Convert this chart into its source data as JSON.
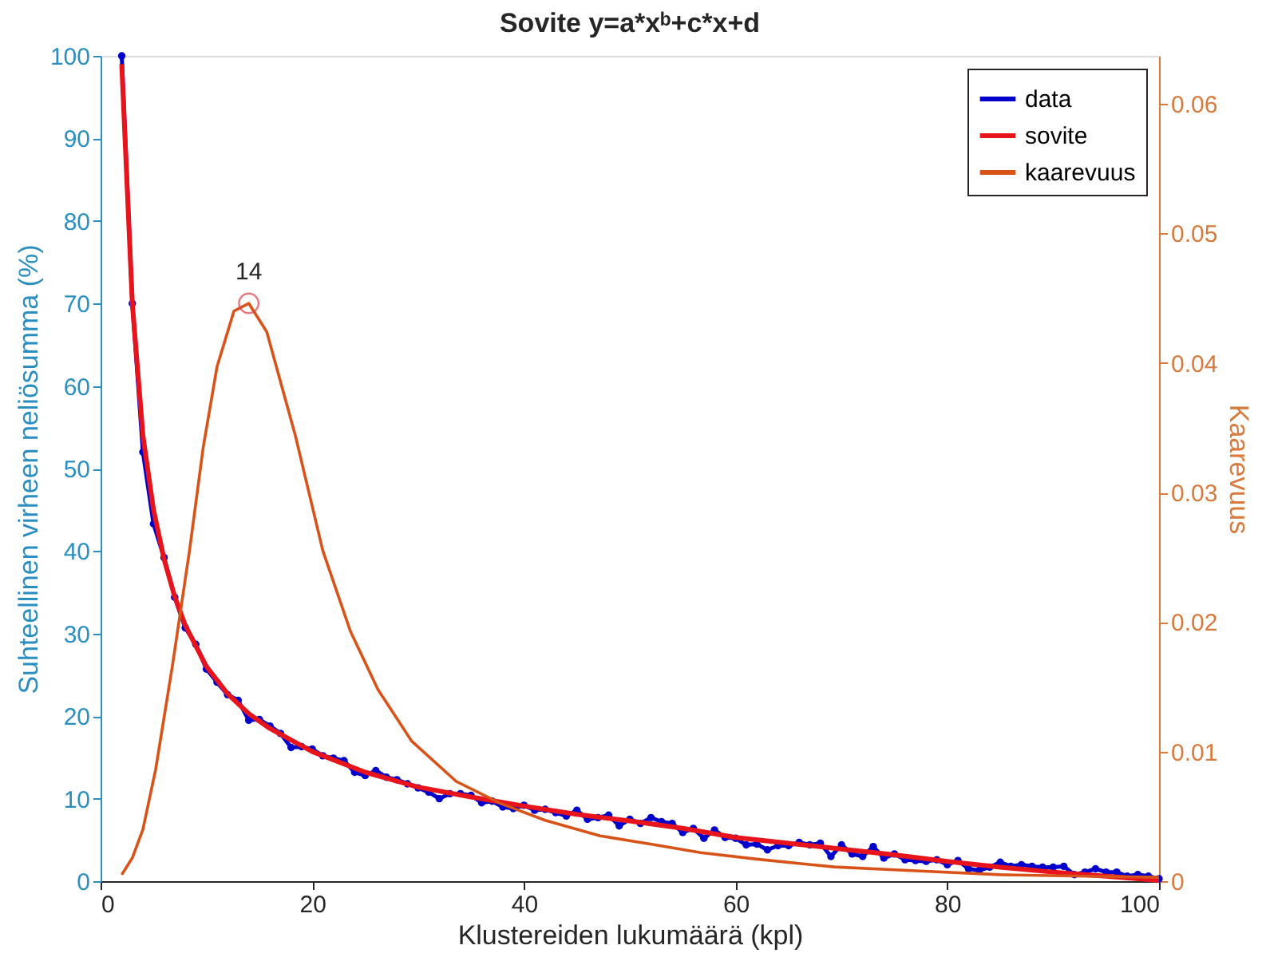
{
  "chart_data": {
    "type": "line",
    "title": "Sovite y=a*xᵇ+c*x+d",
    "xlabel": "Klustereiden lukumäärä (kpl)",
    "ylabel": "Suhteellinen virheen neliösumma (%)",
    "y2label": "Kaarevuus",
    "xlim": [
      0,
      100
    ],
    "xticks": [
      0,
      20,
      40,
      60,
      80,
      100
    ],
    "ylim": [
      0,
      100
    ],
    "yticks": [
      0,
      10,
      20,
      30,
      40,
      50,
      60,
      70,
      80,
      90,
      100
    ],
    "y2lim": [
      0,
      0.0637
    ],
    "y2ticks": [
      0,
      0.01,
      0.02,
      0.03,
      0.04,
      0.05,
      0.06
    ],
    "grid": false,
    "legend": "top right",
    "annotations": [
      {
        "text": "14",
        "x": 14,
        "y": 70
      }
    ],
    "series": [
      {
        "name": "data",
        "type": "line",
        "marker": "circle",
        "color": "#0000cc",
        "x": [
          2,
          3,
          4,
          5,
          6,
          7,
          8,
          9,
          10,
          11,
          12,
          13,
          14,
          15,
          16,
          17,
          18,
          19,
          20,
          21,
          22,
          23,
          24,
          25,
          26,
          27,
          28,
          29,
          30,
          31,
          32,
          33,
          34,
          35,
          36,
          37,
          38,
          39,
          40,
          41,
          42,
          43,
          44,
          45,
          46,
          47,
          48,
          49,
          50,
          51,
          52,
          53,
          54,
          55,
          56,
          57,
          58,
          59,
          60,
          61,
          62,
          63,
          64,
          65,
          66,
          67,
          68,
          69,
          70,
          71,
          72,
          73,
          74,
          75,
          76,
          77,
          78,
          79,
          80,
          81,
          82,
          83,
          84,
          85,
          86,
          87,
          88,
          89,
          90,
          91,
          92,
          93,
          94,
          95,
          96,
          97,
          98,
          99,
          100
        ],
        "values": [
          100,
          70,
          52,
          43.3,
          39.2,
          34.4,
          30.7,
          28.7,
          25.7,
          24.1,
          22.6,
          21.9,
          19.5,
          19.6,
          18.8,
          17.9,
          16.2,
          16.3,
          16.0,
          15.2,
          14.9,
          14.6,
          13.2,
          12.8,
          13.4,
          12.6,
          12.3,
          11.8,
          11.3,
          10.8,
          10.0,
          10.6,
          10.6,
          10.4,
          9.5,
          9.7,
          9.0,
          8.8,
          9.2,
          8.6,
          8.7,
          8.3,
          7.9,
          8.6,
          7.5,
          7.7,
          8.0,
          6.7,
          7.5,
          7.0,
          7.7,
          7.2,
          7.0,
          5.9,
          6.4,
          5.2,
          6.2,
          5.3,
          5.2,
          4.4,
          4.5,
          3.8,
          4.3,
          4.3,
          4.7,
          4.4,
          4.6,
          3.0,
          4.4,
          3.3,
          3.0,
          4.2,
          2.8,
          3.3,
          2.6,
          2.5,
          2.4,
          2.6,
          2.0,
          2.5,
          1.5,
          1.3,
          1.7,
          2.3,
          1.8,
          2.0,
          1.8,
          1.7,
          1.7,
          1.8,
          0.8,
          1.1,
          1.5,
          1.1,
          1.1,
          0.6,
          0.8,
          0.6,
          0.3
        ]
      },
      {
        "name": "sovite",
        "type": "line",
        "marker": "none",
        "color": "#e8141c",
        "x": [
          2,
          3,
          4,
          5,
          6,
          7,
          8,
          10,
          12,
          14,
          16,
          20,
          25,
          30,
          35,
          40,
          45,
          50,
          55,
          60,
          65,
          70,
          75,
          80,
          85,
          90,
          95,
          100
        ],
        "values": [
          99,
          70,
          54,
          45,
          39,
          34.5,
          31,
          26,
          22.7,
          20.3,
          18.5,
          15.7,
          13.2,
          11.4,
          10.2,
          9.1,
          8.1,
          7.3,
          6.4,
          5.3,
          4.6,
          3.9,
          3.2,
          2.4,
          1.7,
          1.1,
          0.6,
          0.1
        ]
      },
      {
        "name": "kaarevuus",
        "type": "line",
        "marker": "none",
        "axis": "y2",
        "color": "#d95319",
        "x": [
          2,
          3,
          4,
          5.2,
          6.8,
          8.4,
          9.7,
          11,
          12.6,
          14,
          15.7,
          18.4,
          21,
          23.6,
          26.2,
          29.4,
          33.6,
          37.8,
          42,
          47.2,
          52.4,
          56.7,
          62,
          69.3,
          77,
          85,
          92,
          100
        ],
        "values": [
          0.0005,
          0.0018,
          0.004,
          0.0086,
          0.0167,
          0.0255,
          0.0335,
          0.0397,
          0.044,
          0.0446,
          0.0424,
          0.0344,
          0.0255,
          0.0193,
          0.0148,
          0.0108,
          0.0077,
          0.006,
          0.0047,
          0.0035,
          0.0028,
          0.0022,
          0.0017,
          0.0011,
          0.0008,
          0.0005,
          0.0004,
          0.0003
        ]
      },
      {
        "type": "scatter",
        "marker": "circle",
        "axis": "y2",
        "color": "#d9434a",
        "x": [
          14
        ],
        "values": [
          0.0446
        ]
      }
    ]
  }
}
